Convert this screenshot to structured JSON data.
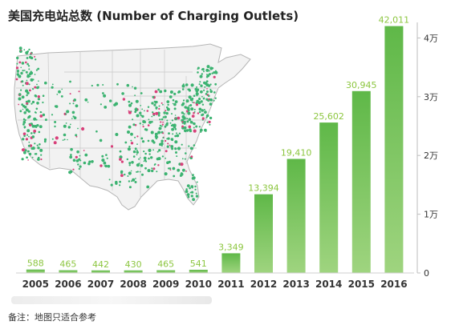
{
  "title": "美国充电站总数 (Number of Charging Outlets)",
  "footnote": "备注：地图只适合参考",
  "colors": {
    "bar_top": "#5fb848",
    "bar_bottom": "#9fd47f",
    "label": "#8cc63f",
    "axis_text": "#333333",
    "map_land": "#f2f2f2",
    "map_border": "#b5b5b5",
    "dot_green": "#3cb371",
    "dot_pink": "#d8407a"
  },
  "map_icon": "us-map-icon",
  "chart_data": {
    "type": "bar",
    "categories": [
      "2005",
      "2006",
      "2007",
      "2008",
      "2009",
      "2010",
      "2011",
      "2012",
      "2013",
      "2014",
      "2015",
      "2016"
    ],
    "values": [
      588,
      465,
      442,
      430,
      465,
      541,
      3349,
      13394,
      19410,
      25602,
      30945,
      42011
    ],
    "value_labels": [
      "588",
      "465",
      "442",
      "430",
      "465",
      "541",
      "3,349",
      "13,394",
      "19,410",
      "25,602",
      "30,945",
      "42,011"
    ],
    "title": "美国充电站总数 (Number of Charging Outlets)",
    "xlabel": "",
    "ylabel": "",
    "ylim": [
      0,
      44000
    ],
    "yticks": [
      0,
      10000,
      20000,
      30000,
      40000
    ],
    "ytick_labels": [
      "0",
      "1万",
      "2万",
      "3万",
      "4万"
    ],
    "y_axis_side": "right",
    "grid": false,
    "legend": "none"
  }
}
